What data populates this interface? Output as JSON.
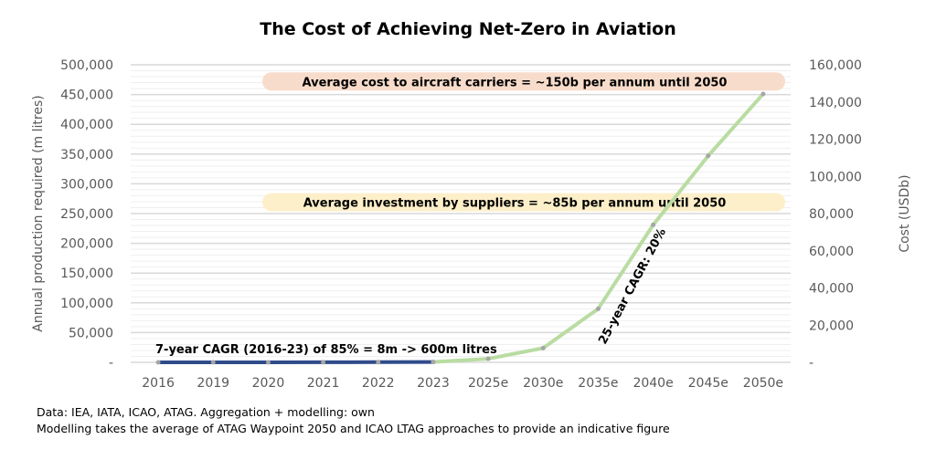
{
  "chart_data": {
    "type": "line",
    "title": "The Cost of Achieving Net-Zero in Aviation",
    "ylabel": "Annual production required (m litres)",
    "y2label": "Cost (USDb)",
    "categories": [
      "2016",
      "2019",
      "2020",
      "2021",
      "2022",
      "2023",
      "2025e",
      "2030e",
      "2035e",
      "2040e",
      "2045e",
      "2050e"
    ],
    "ylim": [
      0,
      500000
    ],
    "y2lim": [
      0,
      160000
    ],
    "yticks": [
      "-",
      "50,000",
      "100,000",
      "150,000",
      "200,000",
      "250,000",
      "300,000",
      "350,000",
      "400,000",
      "450,000",
      "500,000"
    ],
    "y2ticks": [
      "-",
      "20,000",
      "40,000",
      "60,000",
      "80,000",
      "100,000",
      "120,000",
      "140,000",
      "160,000"
    ],
    "grid": true,
    "series": [
      {
        "color": "#2f4b8a",
        "values": [
          8,
          30,
          60,
          100,
          300,
          600,
          null,
          null,
          null,
          null,
          null,
          null
        ]
      },
      {
        "color": "#b9dca2",
        "values": [
          null,
          null,
          null,
          null,
          null,
          600,
          6000,
          24000,
          90000,
          231000,
          347000,
          451000
        ]
      }
    ],
    "bands": [
      {
        "text": "Average cost to aircraft carriers = ~150b per annum until 2050",
        "color": "#f8dccb",
        "value": 472000
      },
      {
        "text": "Average investment by suppliers = ~85b per annum until 2050",
        "color": "#fdefc9",
        "value": 269000
      }
    ],
    "annotations": {
      "historic": "7-year CAGR (2016-23) of 85% = 8m -> 600m litres",
      "forecast": "25-year CAGR: 20%"
    }
  },
  "footnotes": [
    "Data: IEA, IATA, ICAO, ATAG. Aggregation + modelling: own",
    "Modelling takes the average of ATAG Waypoint 2050 and ICAO LTAG approaches to provide an indicative figure"
  ]
}
